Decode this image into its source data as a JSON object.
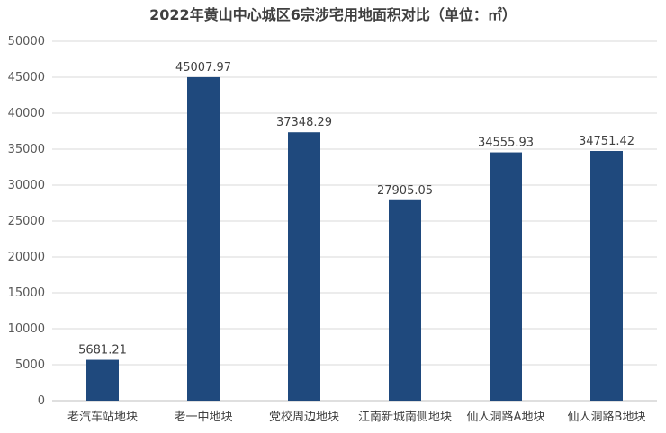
{
  "chart_data": {
    "type": "bar",
    "title": "2022年黄山中心城区6宗涉宅用地面积对比（单位：㎡）",
    "categories": [
      "老汽车站地块",
      "老一中地块",
      "党校周边地块",
      "江南新城南侧地块",
      "仙人洞路A地块",
      "仙人洞路B地块"
    ],
    "values": [
      5681.21,
      45007.97,
      37348.29,
      27905.05,
      34555.93,
      34751.42
    ],
    "data_labels": [
      "5681.21",
      "45007.97",
      "37348.29",
      "27905.05",
      "34555.93",
      "34751.42"
    ],
    "ylim": [
      0,
      50000
    ],
    "yticks": [
      0,
      5000,
      10000,
      15000,
      20000,
      25000,
      30000,
      35000,
      40000,
      45000,
      50000
    ],
    "xlabel": "",
    "ylabel": "",
    "grid": true,
    "legend": "none",
    "bar_color": "#1f497d"
  }
}
